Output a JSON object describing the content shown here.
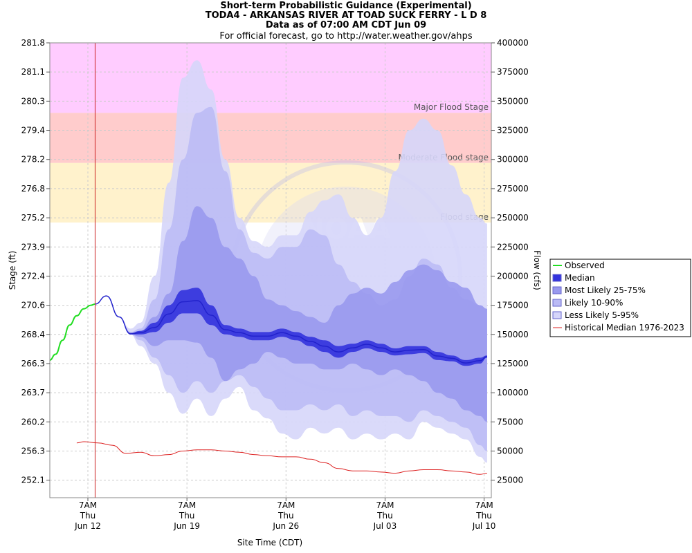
{
  "header": {
    "title_line1": "Short-term Probabilistic Guidance (Experimental)",
    "title_line2": "TODA4 - ARKANSAS RIVER AT TOAD SUCK FERRY - L D 8",
    "title_line3": "Data as of 07:00 AM CDT Jun 09",
    "subtitle": "For official forecast, go to http://water.weather.gov/ahps"
  },
  "chart_data": {
    "type": "area",
    "title": "Short-term Probabilistic Guidance (Experimental)",
    "xlabel": "Site Time (CDT)",
    "ylabel_left": "Stage (ft)",
    "ylabel_right": "Flow (cfs)",
    "x_unit": "days since Jun 09 00:00 CDT",
    "xlim": [
      0.6,
      31.8
    ],
    "ylim_flow": [
      10000,
      400000
    ],
    "x_ticks": [
      {
        "x": 3.29,
        "line1": "7AM",
        "line2": "Thu",
        "line3": "Jun 12"
      },
      {
        "x": 10.29,
        "line1": "7AM",
        "line2": "Thu",
        "line3": "Jun 19"
      },
      {
        "x": 17.29,
        "line1": "7AM",
        "line2": "Thu",
        "line3": "Jun 26"
      },
      {
        "x": 24.29,
        "line1": "7AM",
        "line2": "Thu",
        "line3": "Jul 03"
      },
      {
        "x": 31.29,
        "line1": "7AM",
        "line2": "Thu",
        "line3": "Jul 10"
      }
    ],
    "left_ticks": [
      {
        "flow": 400000,
        "stage": "281.8"
      },
      {
        "flow": 375000,
        "stage": "281.1"
      },
      {
        "flow": 350000,
        "stage": "280.3"
      },
      {
        "flow": 325000,
        "stage": "279.4"
      },
      {
        "flow": 300000,
        "stage": "278.2"
      },
      {
        "flow": 275000,
        "stage": "276.8"
      },
      {
        "flow": 250000,
        "stage": "275.2"
      },
      {
        "flow": 225000,
        "stage": "273.9"
      },
      {
        "flow": 200000,
        "stage": "272.4"
      },
      {
        "flow": 175000,
        "stage": "270.6"
      },
      {
        "flow": 150000,
        "stage": "268.4"
      },
      {
        "flow": 125000,
        "stage": "266.3"
      },
      {
        "flow": 100000,
        "stage": "263.7"
      },
      {
        "flow": 75000,
        "stage": "260.2"
      },
      {
        "flow": 50000,
        "stage": "256.3"
      },
      {
        "flow": 25000,
        "stage": "252.1"
      }
    ],
    "right_ticks": [
      "400000",
      "375000",
      "350000",
      "325000",
      "300000",
      "275000",
      "250000",
      "225000",
      "200000",
      "175000",
      "150000",
      "125000",
      "100000",
      "75000",
      "50000",
      "25000"
    ],
    "flood_zones": [
      {
        "name": "Major Flood Stage",
        "from_flow": 340000,
        "to_flow": 400000,
        "color": "#ffccff"
      },
      {
        "name": "Moderate Flood stage",
        "from_flow": 297000,
        "to_flow": 340000,
        "color": "#ffcccc"
      },
      {
        "name": "Flood stage",
        "from_flow": 246000,
        "to_flow": 297000,
        "color": "#fff2cc"
      }
    ],
    "forecast_start_x": 3.8,
    "legend": {
      "placement": "right",
      "items": [
        {
          "label": "Observed",
          "color": "#22dd22",
          "kind": "line"
        },
        {
          "label": "Median",
          "color": "#3333dd",
          "kind": "box"
        },
        {
          "label": "Most Likely 25-75%",
          "color": "#9999ee",
          "kind": "box"
        },
        {
          "label": "Likely 10-90%",
          "color": "#bbbbf5",
          "kind": "box"
        },
        {
          "label": "Less Likely 5-95%",
          "color": "#d6d6fa",
          "kind": "box"
        },
        {
          "label": "Historical Median 1976-2023",
          "color": "#dd2222",
          "kind": "line"
        }
      ]
    },
    "series": [
      {
        "name": "Observed",
        "color": "#22dd22",
        "x": [
          0.6,
          1.0,
          1.5,
          2.0,
          2.5,
          3.0,
          3.5,
          3.8
        ],
        "y": [
          128000,
          133000,
          145000,
          158000,
          166000,
          172000,
          175000,
          176000
        ]
      },
      {
        "name": "Historical Median 1976-2023",
        "color": "#dd2222",
        "x": [
          2.5,
          3.0,
          4.0,
          5.0,
          6.0,
          7.0,
          8.0,
          9.0,
          10.0,
          11.0,
          12.0,
          13.0,
          14.0,
          15.0,
          16.0,
          17.0,
          18.0,
          19.0,
          20.0,
          21.0,
          22.0,
          23.0,
          24.0,
          25.0,
          26.0,
          27.0,
          28.0,
          29.0,
          30.0,
          31.0,
          31.5
        ],
        "y": [
          57000,
          58000,
          57000,
          55000,
          48000,
          49000,
          46000,
          47000,
          50000,
          51000,
          51000,
          50000,
          49000,
          47000,
          46000,
          45000,
          45000,
          43000,
          40000,
          35000,
          33000,
          33000,
          32000,
          31000,
          33000,
          34000,
          34000,
          33000,
          32000,
          30000,
          31000
        ]
      }
    ],
    "bands": [
      {
        "name": "Less Likely 5-95%",
        "color": "#d6d6fa",
        "x": [
          3.8,
          4.6,
          5.5,
          6.3,
          7.0,
          8.0,
          9.0,
          10.0,
          11.0,
          12.0,
          13.0,
          14.0,
          15.0,
          16.0,
          17.0,
          18.0,
          19.0,
          20.0,
          21.0,
          22.0,
          23.0,
          24.0,
          25.0,
          26.0,
          27.0,
          28.0,
          29.0,
          30.0,
          31.0,
          31.5
        ],
        "lo": [
          176000,
          183000,
          165000,
          150000,
          140000,
          125000,
          100000,
          82000,
          95000,
          80000,
          95000,
          105000,
          85000,
          78000,
          65000,
          60000,
          70000,
          65000,
          70000,
          60000,
          65000,
          60000,
          65000,
          60000,
          75000,
          70000,
          65000,
          60000,
          45000,
          40000
        ],
        "hi": [
          176000,
          183000,
          165000,
          155000,
          160000,
          200000,
          280000,
          370000,
          385000,
          360000,
          300000,
          250000,
          230000,
          225000,
          235000,
          235000,
          255000,
          265000,
          270000,
          250000,
          235000,
          250000,
          290000,
          325000,
          335000,
          325000,
          295000,
          270000,
          250000,
          245000
        ]
      },
      {
        "name": "Likely 10-90%",
        "color": "#bbbbf5",
        "x": [
          3.8,
          4.6,
          5.5,
          6.3,
          7.0,
          8.0,
          9.0,
          10.0,
          11.0,
          12.0,
          13.0,
          14.0,
          15.0,
          16.0,
          17.0,
          18.0,
          19.0,
          20.0,
          21.0,
          22.0,
          23.0,
          24.0,
          25.0,
          26.0,
          27.0,
          28.0,
          29.0,
          30.0,
          31.0,
          31.5
        ],
        "lo": [
          176000,
          183000,
          165000,
          150000,
          145000,
          130000,
          115000,
          100000,
          110000,
          100000,
          110000,
          115000,
          105000,
          95000,
          85000,
          85000,
          90000,
          85000,
          90000,
          80000,
          85000,
          80000,
          80000,
          75000,
          85000,
          80000,
          75000,
          70000,
          55000,
          50000
        ],
        "hi": [
          176000,
          183000,
          165000,
          152000,
          155000,
          180000,
          240000,
          300000,
          340000,
          345000,
          290000,
          240000,
          220000,
          215000,
          225000,
          225000,
          240000,
          235000,
          210000,
          195000,
          185000,
          175000,
          180000,
          200000,
          215000,
          210000,
          190000,
          180000,
          175000,
          172000
        ]
      },
      {
        "name": "Most Likely 25-75%",
        "color": "#9999ee",
        "x": [
          3.8,
          4.6,
          5.5,
          6.3,
          7.0,
          8.0,
          9.0,
          10.0,
          11.0,
          12.0,
          13.0,
          14.0,
          15.0,
          16.0,
          17.0,
          18.0,
          19.0,
          20.0,
          21.0,
          22.0,
          23.0,
          24.0,
          25.0,
          26.0,
          27.0,
          28.0,
          29.0,
          30.0,
          31.0,
          31.5
        ],
        "lo": [
          176000,
          183000,
          165000,
          150000,
          148000,
          140000,
          145000,
          145000,
          143000,
          130000,
          110000,
          120000,
          125000,
          135000,
          130000,
          125000,
          125000,
          120000,
          120000,
          125000,
          120000,
          115000,
          120000,
          115000,
          110000,
          100000,
          95000,
          85000,
          80000,
          75000
        ],
        "hi": [
          176000,
          183000,
          165000,
          152000,
          153000,
          165000,
          185000,
          230000,
          260000,
          250000,
          225000,
          215000,
          200000,
          180000,
          175000,
          170000,
          165000,
          160000,
          175000,
          185000,
          190000,
          185000,
          195000,
          205000,
          210000,
          205000,
          195000,
          190000,
          175000,
          172000
        ]
      },
      {
        "name": "Median",
        "color": "#3333dd",
        "x": [
          3.8,
          4.6,
          5.5,
          6.3,
          7.0,
          8.0,
          9.0,
          10.0,
          11.0,
          12.0,
          13.0,
          14.0,
          15.0,
          16.0,
          17.0,
          18.0,
          19.0,
          20.0,
          21.0,
          22.0,
          23.0,
          24.0,
          25.0,
          26.0,
          27.0,
          28.0,
          29.0,
          30.0,
          31.0,
          31.5
        ],
        "lo": [
          176000,
          183000,
          165000,
          150000,
          150000,
          152000,
          160000,
          168000,
          168000,
          158000,
          150000,
          148000,
          145000,
          145000,
          148000,
          145000,
          140000,
          135000,
          130000,
          135000,
          138000,
          135000,
          132000,
          133000,
          134000,
          128000,
          127000,
          123000,
          125000,
          130000
        ],
        "hi": [
          176000,
          183000,
          165000,
          151000,
          153000,
          160000,
          175000,
          188000,
          190000,
          175000,
          158000,
          155000,
          152000,
          152000,
          155000,
          152000,
          148000,
          145000,
          140000,
          142000,
          145000,
          142000,
          138000,
          140000,
          140000,
          135000,
          132000,
          128000,
          130000,
          132000
        ]
      }
    ]
  },
  "legend_title": "",
  "watermark": "NOAA"
}
